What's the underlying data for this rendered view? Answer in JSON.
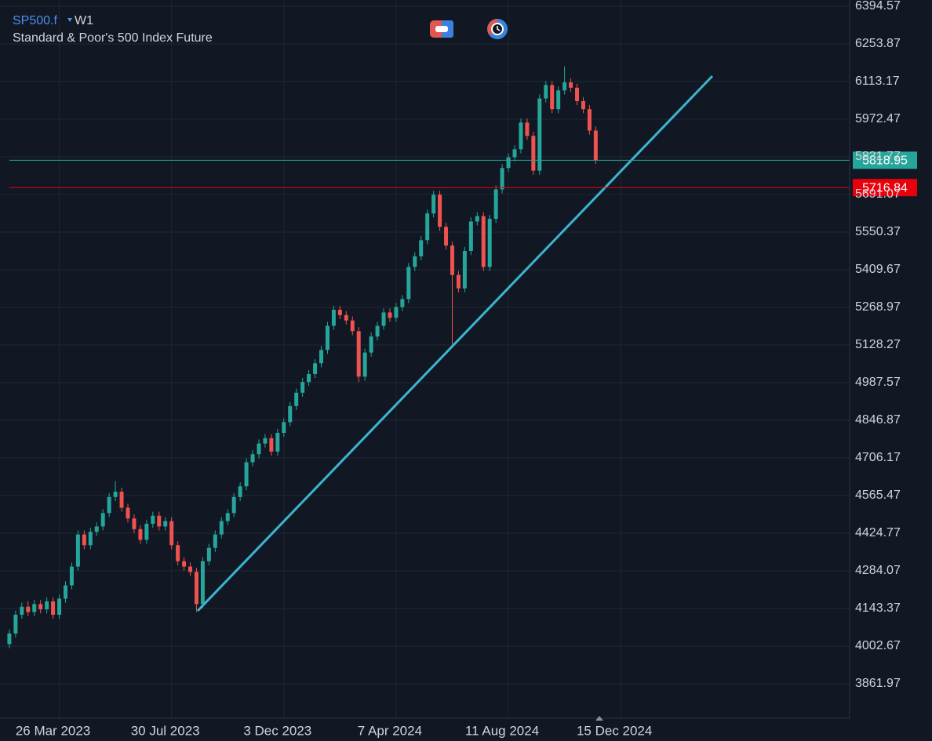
{
  "chart_data": {
    "type": "candlestick",
    "symbol": "SP500.f",
    "timeframe": "W1",
    "title": "Standard & Poor's 500 Index Future",
    "up_color": "#26a69a",
    "down_color": "#ef5350",
    "open": [
      4010,
      4050,
      4120,
      4150,
      4130,
      4160,
      4140,
      4170,
      4120,
      4180,
      4230,
      4300,
      4420,
      4380,
      4430,
      4450,
      4500,
      4560,
      4580,
      4520,
      4480,
      4440,
      4400,
      4460,
      4490,
      4450,
      4470,
      4380,
      4320,
      4300,
      4280,
      4160,
      4320,
      4370,
      4420,
      4470,
      4500,
      4560,
      4600,
      4690,
      4720,
      4760,
      4780,
      4730,
      4800,
      4840,
      4900,
      4950,
      4990,
      5020,
      5060,
      5110,
      5200,
      5260,
      5240,
      5220,
      5180,
      5010,
      5100,
      5160,
      5200,
      5250,
      5230,
      5270,
      5300,
      5420,
      5460,
      5520,
      5620,
      5690,
      5570,
      5500,
      5390,
      5340,
      5480,
      5590,
      5610,
      5420,
      5600,
      5710,
      5790,
      5830,
      5860,
      5960,
      5910,
      5780,
      6050,
      6100,
      6010,
      6080,
      6110,
      6090,
      6040,
      6010,
      5930
    ],
    "high": [
      4065,
      4135,
      4165,
      4170,
      4175,
      4175,
      4185,
      4185,
      4195,
      4245,
      4315,
      4435,
      4435,
      4445,
      4465,
      4515,
      4575,
      4620,
      4595,
      4535,
      4495,
      4455,
      4475,
      4505,
      4505,
      4485,
      4485,
      4395,
      4335,
      4315,
      4295,
      4335,
      4385,
      4435,
      4485,
      4515,
      4575,
      4615,
      4705,
      4735,
      4775,
      4795,
      4795,
      4815,
      4855,
      4915,
      4965,
      5005,
      5035,
      5075,
      5125,
      5215,
      5275,
      5275,
      5255,
      5235,
      5195,
      5115,
      5175,
      5215,
      5265,
      5265,
      5285,
      5315,
      5435,
      5475,
      5535,
      5635,
      5705,
      5705,
      5585,
      5515,
      5405,
      5495,
      5605,
      5625,
      5625,
      5615,
      5725,
      5805,
      5845,
      5875,
      5975,
      5975,
      5925,
      6065,
      6115,
      6115,
      6095,
      6170,
      6125,
      6105,
      6055,
      6025,
      5945
    ],
    "low": [
      3995,
      4035,
      4105,
      4115,
      4115,
      4125,
      4125,
      4105,
      4105,
      4165,
      4215,
      4285,
      4365,
      4365,
      4415,
      4435,
      4485,
      4545,
      4505,
      4465,
      4425,
      4385,
      4385,
      4445,
      4435,
      4435,
      4365,
      4305,
      4285,
      4265,
      4130,
      4145,
      4305,
      4355,
      4405,
      4455,
      4485,
      4545,
      4585,
      4675,
      4705,
      4745,
      4715,
      4715,
      4785,
      4825,
      4885,
      4935,
      4975,
      5005,
      5045,
      5095,
      5185,
      5225,
      5205,
      5165,
      4990,
      4995,
      5085,
      5145,
      5185,
      5215,
      5215,
      5255,
      5285,
      5405,
      5445,
      5505,
      5605,
      5555,
      5485,
      5130,
      5325,
      5325,
      5465,
      5575,
      5405,
      5405,
      5585,
      5695,
      5775,
      5815,
      5845,
      5895,
      5765,
      5765,
      6035,
      5995,
      5995,
      6065,
      6075,
      6025,
      5995,
      5915,
      5805
    ],
    "close": [
      4050,
      4120,
      4150,
      4130,
      4160,
      4140,
      4170,
      4120,
      4180,
      4230,
      4300,
      4420,
      4380,
      4430,
      4450,
      4500,
      4560,
      4580,
      4520,
      4480,
      4440,
      4400,
      4460,
      4490,
      4450,
      4470,
      4380,
      4320,
      4300,
      4280,
      4160,
      4320,
      4370,
      4420,
      4470,
      4500,
      4560,
      4600,
      4690,
      4720,
      4760,
      4780,
      4730,
      4800,
      4840,
      4900,
      4950,
      4990,
      5020,
      5060,
      5110,
      5200,
      5260,
      5240,
      5220,
      5180,
      5010,
      5100,
      5160,
      5200,
      5250,
      5230,
      5270,
      5300,
      5420,
      5460,
      5520,
      5620,
      5690,
      5570,
      5500,
      5390,
      5340,
      5480,
      5590,
      5610,
      5420,
      5600,
      5710,
      5790,
      5830,
      5860,
      5960,
      5910,
      5780,
      6050,
      6100,
      6010,
      6080,
      6110,
      6090,
      6040,
      6010,
      5930,
      5819
    ],
    "xlim": [
      -1.5,
      134.7
    ],
    "xticks": [
      {
        "value": 8,
        "label": "26 Mar 2023"
      },
      {
        "value": 26,
        "label": "30 Jul 2023"
      },
      {
        "value": 44,
        "label": "3 Dec 2023"
      },
      {
        "value": 62,
        "label": "7 Apr 2024"
      },
      {
        "value": 80,
        "label": "11 Aug 2024"
      },
      {
        "value": 98,
        "label": "15 Dec 2024"
      }
    ],
    "ylim": [
      3733.0,
      6418.02
    ],
    "yticks": [
      6394.57,
      6253.87,
      6113.17,
      5972.47,
      5831.77,
      5691.07,
      5550.37,
      5409.67,
      5268.97,
      5128.27,
      4987.57,
      4846.87,
      4706.17,
      4565.47,
      4424.77,
      4284.07,
      4143.37,
      4002.67,
      3861.97
    ],
    "grid": true,
    "price_lines": [
      {
        "value": 5818.95,
        "color": "#26a69a"
      },
      {
        "value": 5716.84,
        "color": "#e8000b"
      }
    ]
  }
}
